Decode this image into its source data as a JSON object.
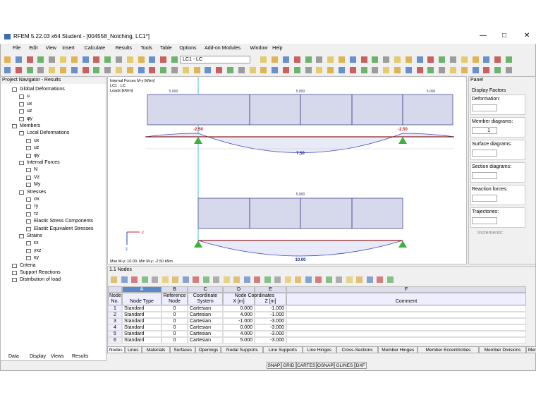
{
  "window": {
    "title": "RFEM 5.22.03 x64 Student - [004558_Notching, LC1*]"
  },
  "menu": [
    "File",
    "Edit",
    "View",
    "Insert",
    "Calculate",
    "Results",
    "Tools",
    "Table",
    "Options",
    "Add-on Modules",
    "Window",
    "Help"
  ],
  "toolbar": {
    "load_case": "LC1 - LC"
  },
  "navigator": {
    "title": "Project Navigator - Results",
    "items": [
      "Global Deformations",
      "u",
      "ux",
      "uz",
      "φy",
      "Members",
      "Local Deformations",
      "ux",
      "uz",
      "φy",
      "Internal Forces",
      "N",
      "Vz",
      "My",
      "Stresses",
      "σx",
      "τy",
      "τz",
      "Elastic Stress Components",
      "Elastic Equivalent Stresses",
      "Strains",
      "εx",
      "γxz",
      "κy",
      "Criteria",
      "Support Reactions",
      "Distribution of load"
    ],
    "tabs": [
      "Data",
      "Display",
      "Views",
      "Results"
    ]
  },
  "viewport": {
    "info": [
      "Internal Forces M-y [kNm]",
      "LC1 : LC",
      "Loads [kN/m]"
    ],
    "upper": {
      "loads": [
        "5.000",
        "5.000",
        "5.000"
      ],
      "support_moments": [
        "-2.50",
        "-2.50"
      ],
      "span_moment": "7.50"
    },
    "lower": {
      "load": "5.000",
      "span_moment": "10.00"
    },
    "summary": "Max M-y: 10.00, Min M-y: -2.50 kNm",
    "axes": [
      "x",
      "z"
    ]
  },
  "panel": {
    "title": "Panel",
    "heading": "Display Factors",
    "fields": [
      "Deformation:",
      "Member diagrams:",
      "Surface diagrams:",
      "Section diagrams:",
      "Reaction forces:",
      "Trajectories:"
    ],
    "member_diagrams_value": 1,
    "increments": "Increments:"
  },
  "table": {
    "title": "1.1 Nodes",
    "column_letters": [
      "A",
      "B",
      "C",
      "D",
      "E",
      "F"
    ],
    "row_header": "Node No.",
    "group": "Node Coordinates",
    "columns": [
      "Node Type",
      "Reference Node",
      "Coordinate System",
      "X [m]",
      "Z [m]",
      "Comment"
    ],
    "rows": [
      [
        1,
        "Standard",
        0,
        "Cartesian",
        "0.000",
        "-1.000"
      ],
      [
        2,
        "Standard",
        0,
        "Cartesian",
        "4.000",
        "-1.000"
      ],
      [
        3,
        "Standard",
        0,
        "Cartesian",
        "-1.000",
        "-3.000"
      ],
      [
        4,
        "Standard",
        0,
        "Cartesian",
        "0.000",
        "-3.000"
      ],
      [
        5,
        "Standard",
        0,
        "Cartesian",
        "4.000",
        "-3.000"
      ],
      [
        6,
        "Standard",
        0,
        "Cartesian",
        "5.000",
        "-3.000"
      ]
    ]
  },
  "tabs": [
    "Nodes",
    "Lines",
    "Materials",
    "Surfaces",
    "Openings",
    "Nodal Supports",
    "Line Supports",
    "Line Hinges",
    "Cross-Sections",
    "Member Hinges",
    "Member Eccentricities",
    "Member Divisions",
    "Members"
  ],
  "status": [
    "SNAP",
    "GRID",
    "CARTES",
    "OSNAP",
    "GLINES",
    "DXF"
  ]
}
